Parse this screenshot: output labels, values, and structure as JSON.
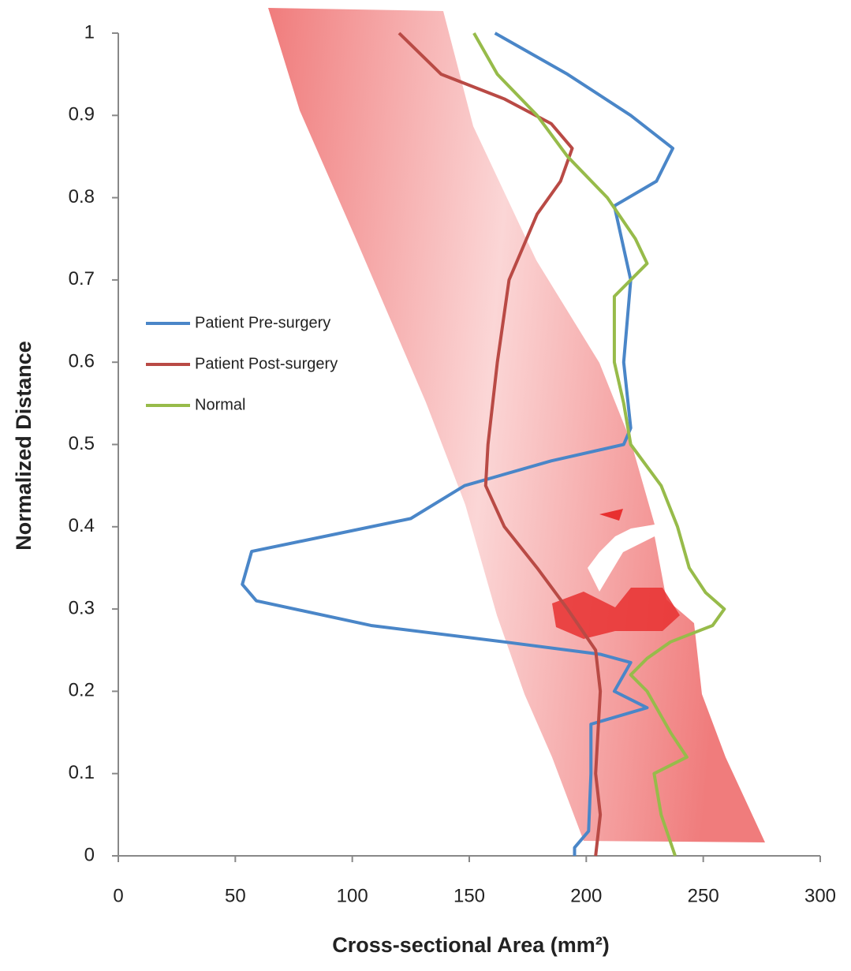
{
  "chart_data": {
    "type": "line",
    "x_label": "Cross-sectional Area (mm²)",
    "y_label": "Normalized Distance",
    "xlim": [
      0,
      300
    ],
    "xticks": [
      0,
      50,
      100,
      150,
      200,
      250,
      300
    ],
    "ylim": [
      0,
      1
    ],
    "yticks": [
      0,
      0.1,
      0.2,
      0.3,
      0.4,
      0.5,
      0.6,
      0.7,
      0.8,
      0.9,
      1
    ],
    "legend": "left",
    "series": [
      {
        "name": "Patient Pre-surgery",
        "color": "#4a86c8",
        "x": [
          161,
          192,
          219,
          237,
          230,
          212,
          219,
          216,
          219,
          216,
          185,
          148,
          125,
          91,
          57,
          53,
          59,
          108,
          165,
          206,
          219,
          212,
          226,
          202,
          202,
          201,
          195,
          195
        ],
        "y": [
          1,
          0.95,
          0.9,
          0.86,
          0.82,
          0.79,
          0.7,
          0.6,
          0.52,
          0.5,
          0.48,
          0.45,
          0.41,
          0.39,
          0.37,
          0.33,
          0.31,
          0.28,
          0.26,
          0.245,
          0.235,
          0.2,
          0.18,
          0.16,
          0.1,
          0.03,
          0.01,
          0
        ]
      },
      {
        "name": "Patient Post-surgery",
        "color": "#b94a45",
        "x": [
          120,
          138,
          165,
          185,
          194,
          189,
          179,
          167,
          162,
          158,
          157,
          165,
          179,
          192,
          204,
          206,
          204,
          206,
          204
        ],
        "y": [
          1,
          0.95,
          0.92,
          0.89,
          0.86,
          0.82,
          0.78,
          0.7,
          0.6,
          0.5,
          0.45,
          0.4,
          0.35,
          0.3,
          0.25,
          0.2,
          0.1,
          0.05,
          0
        ]
      },
      {
        "name": "Normal",
        "color": "#97bb4a",
        "x": [
          152,
          162,
          179,
          192,
          209,
          221,
          226,
          212,
          212,
          216,
          219,
          232,
          239,
          244,
          251,
          259,
          254,
          236,
          226,
          219,
          226,
          236,
          243,
          229,
          232,
          238
        ],
        "y": [
          1,
          0.95,
          0.9,
          0.85,
          0.8,
          0.75,
          0.72,
          0.68,
          0.6,
          0.55,
          0.5,
          0.45,
          0.4,
          0.35,
          0.32,
          0.3,
          0.28,
          0.26,
          0.24,
          0.22,
          0.2,
          0.15,
          0.12,
          0.1,
          0.05,
          0
        ]
      }
    ]
  }
}
